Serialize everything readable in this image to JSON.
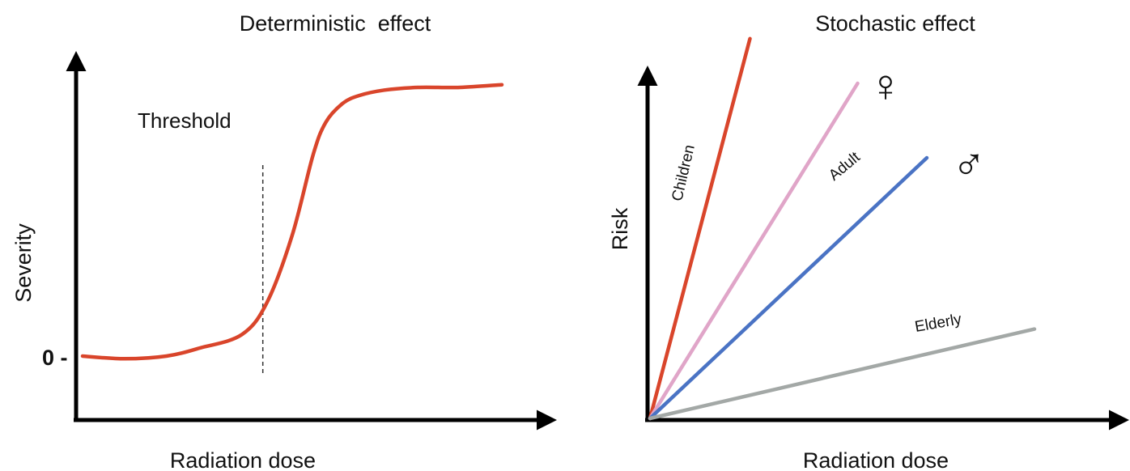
{
  "chart_data": [
    {
      "type": "line",
      "title": "Deterministic  effect",
      "xlabel": "Radiation dose",
      "ylabel": "Severity",
      "y_tick_labels": [
        "0 -"
      ],
      "threshold_label": "Threshold",
      "series": [
        {
          "color": "#d9452b",
          "x": [
            0.0,
            0.1,
            0.2,
            0.28,
            0.38,
            0.44,
            0.5,
            0.55,
            0.58,
            0.62,
            0.66,
            0.72,
            0.8,
            0.9,
            1.0
          ],
          "y": [
            0.0,
            -0.01,
            0.0,
            0.03,
            0.08,
            0.2,
            0.45,
            0.75,
            0.87,
            0.94,
            0.97,
            0.99,
            1.0,
            1.0,
            1.01
          ]
        }
      ],
      "threshold_x": 0.43,
      "grid": false
    },
    {
      "type": "line",
      "title": "Stochastic effect",
      "xlabel": "Radiation dose",
      "ylabel": "Risk",
      "grid": false,
      "series": [
        {
          "name": "Children",
          "color": "#d9452b",
          "x": [
            0,
            0.26
          ],
          "y": [
            0,
            1.02
          ]
        },
        {
          "name": "Adult",
          "color": "#e0a5c8",
          "x": [
            0,
            0.54
          ],
          "y": [
            0,
            0.9
          ]
        },
        {
          "name": "",
          "color": "#4a73c4",
          "x": [
            0,
            0.72
          ],
          "y": [
            0,
            0.7
          ]
        },
        {
          "name": "Elderly",
          "color": "#a3a8a6",
          "x": [
            0,
            1.0
          ],
          "y": [
            0,
            0.24
          ]
        }
      ],
      "symbols": [
        {
          "text": "♀",
          "series_index": 1
        },
        {
          "text": "♂",
          "series_index": 2
        }
      ]
    }
  ]
}
